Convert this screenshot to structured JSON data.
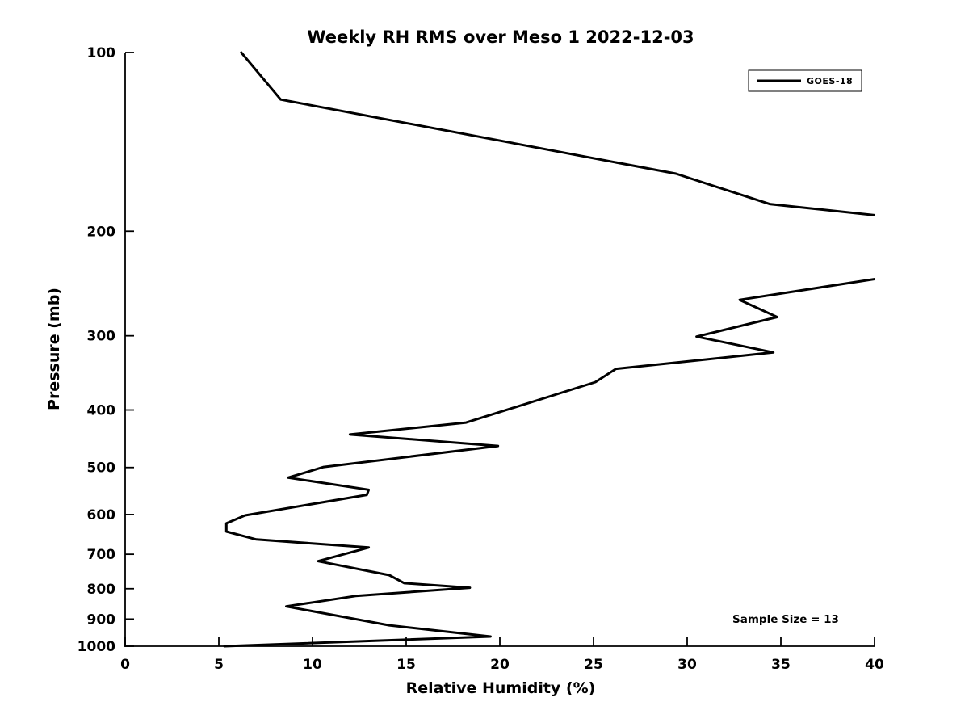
{
  "figure": {
    "background": "#ffffff",
    "foreground": "#000000"
  },
  "chart_data": {
    "type": "line",
    "title": "Weekly RH RMS over Meso 1 2022-12-03",
    "xlabel": "Relative Humidity (%)",
    "ylabel": "Pressure (mb)",
    "xlim": [
      0,
      40
    ],
    "ylim": [
      100,
      1000
    ],
    "x_ticks": [
      0,
      5,
      10,
      15,
      20,
      25,
      30,
      35,
      40
    ],
    "y_ticks": [
      100,
      200,
      300,
      400,
      500,
      600,
      700,
      800,
      900,
      1000
    ],
    "y_scale": "log",
    "y_inverted": true,
    "grid": false,
    "tick_direction": "in",
    "annotation": "Sample Size = 13",
    "legend": {
      "position": "upper right",
      "entries": [
        {
          "label": "GOES-18",
          "color": "#000000"
        }
      ]
    },
    "series": [
      {
        "name": "GOES-18",
        "color": "#000000",
        "line_width": 3,
        "clipped_to_xlim": true,
        "points_rh_pressure": [
          [
            6.2,
            100
          ],
          [
            8.3,
            120
          ],
          [
            29.4,
            160
          ],
          [
            34.4,
            180
          ],
          [
            53.1,
            208
          ],
          [
            32.8,
            261
          ],
          [
            34.8,
            279
          ],
          [
            30.5,
            301
          ],
          [
            34.6,
            320
          ],
          [
            26.2,
            341
          ],
          [
            25.1,
            359
          ],
          [
            18.2,
            420
          ],
          [
            12.0,
            440
          ],
          [
            19.9,
            460
          ],
          [
            10.6,
            499
          ],
          [
            8.7,
            520
          ],
          [
            13.0,
            545
          ],
          [
            12.9,
            556
          ],
          [
            6.4,
            602
          ],
          [
            5.4,
            621
          ],
          [
            5.4,
            641
          ],
          [
            7.0,
            661
          ],
          [
            13.0,
            682
          ],
          [
            10.3,
            719
          ],
          [
            14.1,
            759
          ],
          [
            14.9,
            783
          ],
          [
            18.4,
            797
          ],
          [
            12.3,
            823
          ],
          [
            8.6,
            857
          ],
          [
            14.1,
            922
          ],
          [
            19.5,
            963
          ],
          [
            5.3,
            1000
          ]
        ]
      }
    ]
  }
}
